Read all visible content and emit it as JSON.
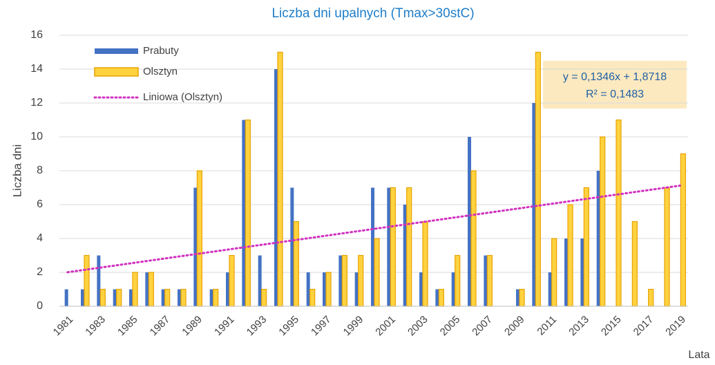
{
  "chart_data": {
    "type": "bar",
    "title": "Liczba dni upalnych (Tmax>30stC)",
    "ylabel": "Liczba dni",
    "xlabel": "Lata",
    "categories": [
      "1981",
      null,
      "1983",
      null,
      "1985",
      null,
      "1987",
      null,
      "1989",
      null,
      "1991",
      null,
      "1993",
      null,
      "1995",
      null,
      "1997",
      null,
      "1999",
      null,
      "2001",
      null,
      "2003",
      null,
      "2005",
      null,
      "2007",
      null,
      "2009",
      null,
      "2011",
      null,
      "2013",
      null,
      "2015",
      null,
      "2017",
      null,
      "2019"
    ],
    "series": [
      {
        "name": "Prabuty",
        "color": "#4472c4",
        "values": [
          1,
          1,
          3,
          1,
          1,
          2,
          1,
          1,
          7,
          1,
          2,
          11,
          3,
          14,
          7,
          2,
          2,
          3,
          2,
          7,
          7,
          6,
          2,
          1,
          2,
          10,
          3,
          0,
          1,
          12,
          2,
          4,
          4,
          8,
          null,
          null,
          null,
          null,
          null
        ]
      },
      {
        "name": "Olsztyn",
        "color": "#ffd23f",
        "edge_color": "#e8a200",
        "values": [
          0,
          3,
          1,
          1,
          2,
          2,
          1,
          1,
          8,
          1,
          3,
          11,
          1,
          15,
          5,
          1,
          2,
          3,
          3,
          4,
          7,
          7,
          5,
          1,
          3,
          8,
          3,
          0,
          1,
          15,
          4,
          6,
          7,
          10,
          11,
          5,
          1,
          7,
          9
        ]
      }
    ],
    "trendline": {
      "name": "Liniowa (Olsztyn)",
      "color": "#d12fbf",
      "slope": 0.1346,
      "intercept": 1.8718,
      "equation": "y = 0,1346x + 1,8718",
      "r2": "R² = 0,1483"
    },
    "ylim": [
      0,
      16
    ],
    "yticks": [
      0,
      2,
      4,
      6,
      8,
      10,
      12,
      14,
      16
    ],
    "grid": true
  }
}
